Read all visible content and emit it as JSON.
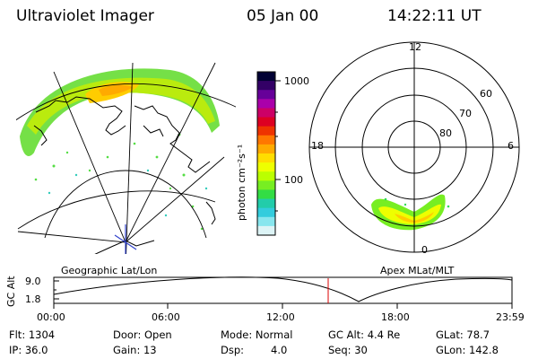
{
  "header": {
    "instrument": "Ultraviolet Imager",
    "date": "05 Jan 00",
    "time": "14:22:11 UT"
  },
  "geo_panel": {
    "label": "Geographic Lat/Lon"
  },
  "polar_panel": {
    "label": "Apex MLat/MLT",
    "mlt_labels": [
      "12",
      "18",
      "6",
      "0"
    ],
    "lat_labels": [
      "60",
      "70",
      "80"
    ]
  },
  "colorbar": {
    "unit_label": "photon cm⁻²s⁻¹",
    "tick_labels": [
      "1000",
      "100"
    ],
    "colors": [
      "#000033",
      "#330066",
      "#660099",
      "#aa00aa",
      "#cc0066",
      "#dd0022",
      "#ee3300",
      "#ff7700",
      "#ffaa00",
      "#ffdd00",
      "#eeff00",
      "#bbff00",
      "#77ee22",
      "#33dd44",
      "#22ccaa",
      "#33ccdd",
      "#88e6ee",
      "#ddf4f6"
    ]
  },
  "timeline": {
    "y_axis_label": "GC Alt",
    "y_ticks": [
      "9.0",
      "1.8"
    ],
    "x_ticks": [
      "00:00",
      "06:00",
      "12:00",
      "18:00",
      "23:59"
    ],
    "current_marker": "14:22"
  },
  "status": {
    "flt": "Flt: 1304",
    "ip": "IP: 36.0",
    "door": "Door: Open",
    "gain": "Gain: 13",
    "mode": "Mode: Normal",
    "dsp_label": "Dsp:",
    "dsp_value": "4.0",
    "gc_alt": "GC Alt: 4.4 Re",
    "seq": "Seq: 30",
    "glat": "GLat: 78.7",
    "glon": "GLon: 142.8"
  }
}
